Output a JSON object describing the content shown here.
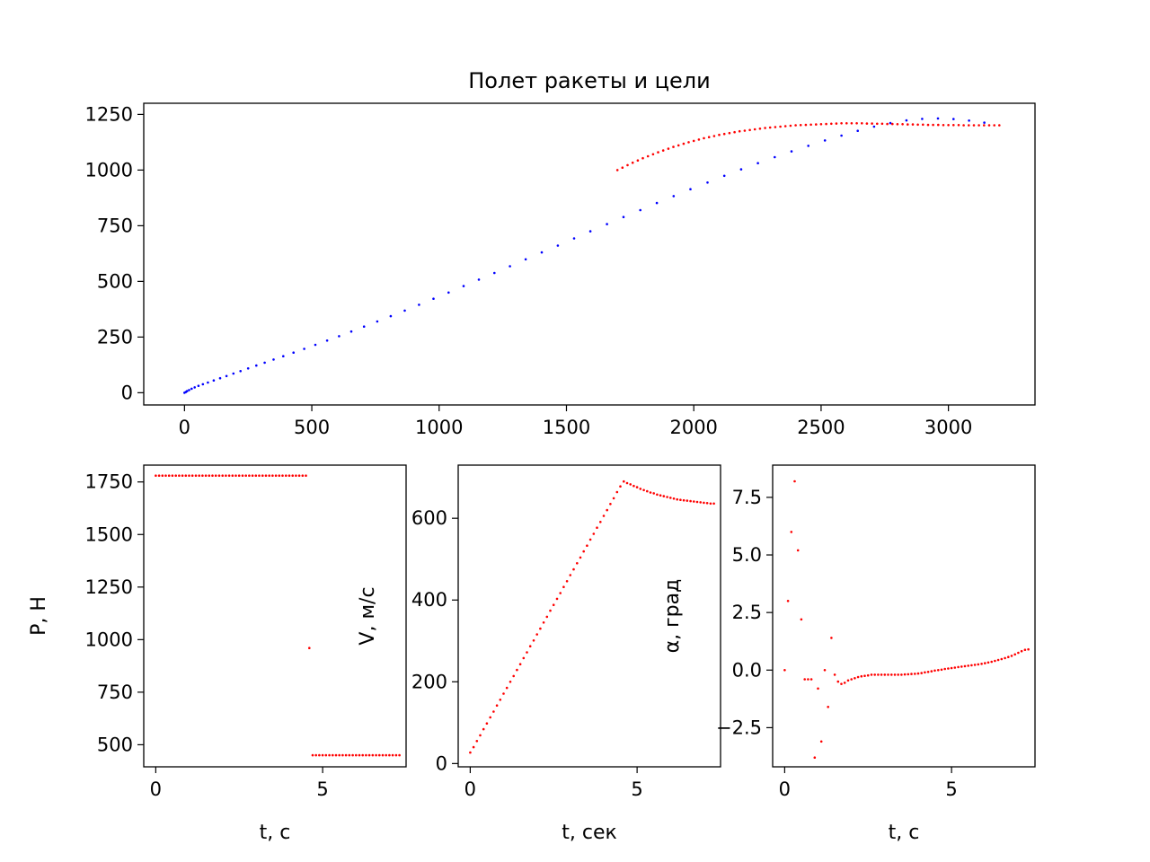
{
  "chart_data": [
    {
      "type": "scatter",
      "title": "Полет ракеты и цели",
      "xlabel": "",
      "ylabel": "",
      "xlim": [
        -160,
        3340
      ],
      "ylim": [
        -55,
        1300
      ],
      "xticks": [
        0,
        500,
        1000,
        1500,
        2000,
        2500,
        3000
      ],
      "yticks": [
        0,
        250,
        500,
        750,
        1000,
        1250
      ],
      "grid": false,
      "series": [
        {
          "color": "#0000ff",
          "x": [
            0,
            5,
            10,
            18,
            28,
            40,
            55,
            72,
            92,
            115,
            140,
            165,
            192,
            220,
            250,
            282,
            315,
            350,
            388,
            428,
            470,
            514,
            560,
            607,
            655,
            705,
            757,
            810,
            865,
            921,
            978,
            1037,
            1096,
            1156,
            1217,
            1278,
            1340,
            1403,
            1466,
            1530,
            1594,
            1659,
            1724,
            1790,
            1855,
            1921,
            1987,
            2054,
            2120,
            2186,
            2252,
            2318,
            2384,
            2450,
            2515,
            2580,
            2644,
            2708,
            2772,
            2835,
            2897,
            2959,
            3020,
            3081,
            3141
          ],
          "y": [
            0,
            3,
            7,
            12,
            18,
            24,
            31,
            38,
            46,
            55,
            65,
            75,
            86,
            97,
            109,
            122,
            135,
            149,
            164,
            180,
            197,
            215,
            234,
            254,
            275,
            297,
            320,
            344,
            369,
            395,
            422,
            450,
            479,
            508,
            538,
            568,
            599,
            630,
            661,
            693,
            725,
            757,
            789,
            820,
            852,
            883,
            914,
            944,
            974,
            1003,
            1031,
            1058,
            1084,
            1109,
            1133,
            1155,
            1176,
            1195,
            1211,
            1223,
            1230,
            1232,
            1229,
            1222,
            1213
          ]
        },
        {
          "color": "#ff0000",
          "x": [
            1700,
            1720,
            1740,
            1760,
            1780,
            1800,
            1820,
            1840,
            1860,
            1880,
            1900,
            1920,
            1940,
            1960,
            1980,
            2000,
            2020,
            2040,
            2060,
            2080,
            2100,
            2120,
            2140,
            2160,
            2180,
            2200,
            2220,
            2240,
            2260,
            2280,
            2300,
            2320,
            2340,
            2360,
            2380,
            2400,
            2420,
            2440,
            2460,
            2480,
            2500,
            2520,
            2540,
            2560,
            2580,
            2600,
            2620,
            2640,
            2660,
            2680,
            2700,
            2720,
            2740,
            2760,
            2780,
            2800,
            2820,
            2840,
            2860,
            2880,
            2900,
            2920,
            2940,
            2960,
            2980,
            3000,
            3020,
            3040,
            3060,
            3080,
            3100,
            3120,
            3140,
            3160,
            3180,
            3200
          ],
          "y": [
            1000,
            1011,
            1022,
            1033,
            1043,
            1053,
            1062,
            1071,
            1080,
            1088,
            1096,
            1104,
            1111,
            1118,
            1125,
            1131,
            1137,
            1143,
            1148,
            1153,
            1158,
            1162,
            1166,
            1170,
            1174,
            1177,
            1180,
            1183,
            1186,
            1189,
            1191,
            1193,
            1195,
            1197,
            1199,
            1201,
            1202,
            1203,
            1204,
            1205,
            1206,
            1207,
            1208,
            1209,
            1210,
            1210,
            1210,
            1210,
            1210,
            1209,
            1209,
            1208,
            1208,
            1207,
            1207,
            1206,
            1206,
            1205,
            1205,
            1204,
            1204,
            1203,
            1203,
            1203,
            1202,
            1202,
            1202,
            1202,
            1201,
            1201,
            1201,
            1201,
            1201,
            1201,
            1201,
            1201
          ]
        }
      ]
    },
    {
      "type": "scatter",
      "title": "",
      "xlabel": "t, с",
      "ylabel": "P, Н",
      "xlim": [
        -0.36,
        7.5
      ],
      "ylim": [
        395,
        1830
      ],
      "xticks": [
        0,
        5
      ],
      "yticks": [
        500,
        750,
        1000,
        1250,
        1500,
        1750
      ],
      "grid": false,
      "series": [
        {
          "color": "#ff0000",
          "x": [
            0,
            0.1,
            0.2,
            0.3,
            0.4,
            0.5,
            0.6,
            0.7,
            0.8,
            0.9,
            1.0,
            1.1,
            1.2,
            1.3,
            1.4,
            1.5,
            1.6,
            1.7,
            1.8,
            1.9,
            2.0,
            2.1,
            2.2,
            2.3,
            2.4,
            2.5,
            2.6,
            2.7,
            2.8,
            2.9,
            3.0,
            3.1,
            3.2,
            3.3,
            3.4,
            3.5,
            3.6,
            3.7,
            3.8,
            3.9,
            4.0,
            4.1,
            4.2,
            4.3,
            4.4,
            4.5,
            4.6,
            4.7,
            4.8,
            4.9,
            5.0,
            5.1,
            5.2,
            5.3,
            5.4,
            5.5,
            5.6,
            5.7,
            5.8,
            5.9,
            6.0,
            6.1,
            6.2,
            6.3,
            6.4,
            6.5,
            6.6,
            6.7,
            6.8,
            6.9,
            7.0,
            7.1,
            7.2,
            7.3
          ],
          "y": [
            1780,
            1780,
            1780,
            1780,
            1780,
            1780,
            1780,
            1780,
            1780,
            1780,
            1780,
            1780,
            1780,
            1780,
            1780,
            1780,
            1780,
            1780,
            1780,
            1780,
            1780,
            1780,
            1780,
            1780,
            1780,
            1780,
            1780,
            1780,
            1780,
            1780,
            1780,
            1780,
            1780,
            1780,
            1780,
            1780,
            1780,
            1780,
            1780,
            1780,
            1780,
            1780,
            1780,
            1780,
            1780,
            1780,
            960,
            450,
            450,
            450,
            450,
            450,
            450,
            450,
            450,
            450,
            450,
            450,
            450,
            450,
            450,
            450,
            450,
            450,
            450,
            450,
            450,
            450,
            450,
            450,
            450,
            450,
            450,
            450
          ]
        }
      ]
    },
    {
      "type": "scatter",
      "title": "",
      "xlabel": "t, сек",
      "ylabel": "V, м/с",
      "xlim": [
        -0.36,
        7.5
      ],
      "ylim": [
        -8,
        730
      ],
      "xticks": [
        0,
        5
      ],
      "yticks": [
        0,
        200,
        400,
        600
      ],
      "grid": false,
      "series": [
        {
          "color": "#ff0000",
          "x": [
            0,
            0.1,
            0.2,
            0.3,
            0.4,
            0.5,
            0.6,
            0.7,
            0.8,
            0.9,
            1.0,
            1.1,
            1.2,
            1.3,
            1.4,
            1.5,
            1.6,
            1.7,
            1.8,
            1.9,
            2.0,
            2.1,
            2.2,
            2.3,
            2.4,
            2.5,
            2.6,
            2.7,
            2.8,
            2.9,
            3.0,
            3.1,
            3.2,
            3.3,
            3.4,
            3.5,
            3.6,
            3.7,
            3.8,
            3.9,
            4.0,
            4.1,
            4.2,
            4.3,
            4.4,
            4.5,
            4.6,
            4.7,
            4.8,
            4.9,
            5.0,
            5.1,
            5.2,
            5.3,
            5.4,
            5.5,
            5.6,
            5.7,
            5.8,
            5.9,
            6.0,
            6.1,
            6.2,
            6.3,
            6.4,
            6.5,
            6.6,
            6.7,
            6.8,
            6.9,
            7.0,
            7.1,
            7.2,
            7.3
          ],
          "y": [
            27,
            40,
            55,
            69,
            84,
            98,
            113,
            127,
            142,
            156,
            171,
            185,
            200,
            214,
            229,
            243,
            258,
            272,
            287,
            301,
            316,
            330,
            345,
            359,
            374,
            388,
            403,
            417,
            432,
            446,
            461,
            475,
            490,
            504,
            519,
            533,
            548,
            562,
            577,
            591,
            606,
            620,
            635,
            649,
            664,
            678,
            690,
            686,
            683,
            679,
            676,
            672,
            669,
            666,
            663,
            661,
            658,
            656,
            654,
            652,
            650,
            648,
            646,
            645,
            644,
            643,
            642,
            641,
            640,
            639,
            638,
            637,
            636,
            636
          ]
        }
      ]
    },
    {
      "type": "scatter",
      "title": "",
      "xlabel": "t, с",
      "ylabel": "α, град",
      "xlim": [
        -0.36,
        7.5
      ],
      "ylim": [
        -4.2,
        8.9
      ],
      "xticks": [
        0,
        5
      ],
      "yticks": [
        -2.5,
        0.0,
        2.5,
        5.0,
        7.5
      ],
      "ytick_labels": [
        "−2.5",
        "0.0",
        "2.5",
        "5.0",
        "7.5"
      ],
      "grid": false,
      "series": [
        {
          "color": "#ff0000",
          "x": [
            0,
            0.1,
            0.2,
            0.3,
            0.4,
            0.5,
            0.6,
            0.7,
            0.8,
            0.9,
            1.0,
            1.1,
            1.2,
            1.3,
            1.4,
            1.5,
            1.6,
            1.7,
            1.8,
            1.9,
            2.0,
            2.1,
            2.2,
            2.3,
            2.4,
            2.5,
            2.6,
            2.7,
            2.8,
            2.9,
            3.0,
            3.1,
            3.2,
            3.3,
            3.4,
            3.5,
            3.6,
            3.7,
            3.8,
            3.9,
            4.0,
            4.1,
            4.2,
            4.3,
            4.4,
            4.5,
            4.6,
            4.7,
            4.8,
            4.9,
            5.0,
            5.1,
            5.2,
            5.3,
            5.4,
            5.5,
            5.6,
            5.7,
            5.8,
            5.9,
            6.0,
            6.1,
            6.2,
            6.3,
            6.4,
            6.5,
            6.6,
            6.7,
            6.8,
            6.9,
            7.0,
            7.1,
            7.2,
            7.3
          ],
          "y": [
            0,
            3.0,
            6.0,
            8.2,
            5.2,
            2.2,
            -0.4,
            -0.4,
            -0.4,
            -3.8,
            -0.8,
            -3.1,
            0,
            -1.6,
            1.4,
            -0.2,
            -0.5,
            -0.6,
            -0.55,
            -0.45,
            -0.4,
            -0.35,
            -0.3,
            -0.27,
            -0.25,
            -0.23,
            -0.2,
            -0.2,
            -0.2,
            -0.2,
            -0.2,
            -0.2,
            -0.2,
            -0.2,
            -0.2,
            -0.2,
            -0.19,
            -0.18,
            -0.17,
            -0.16,
            -0.15,
            -0.13,
            -0.1,
            -0.08,
            -0.05,
            -0.02,
            0.0,
            0.02,
            0.05,
            0.07,
            0.09,
            0.11,
            0.13,
            0.15,
            0.17,
            0.19,
            0.21,
            0.23,
            0.25,
            0.27,
            0.3,
            0.33,
            0.36,
            0.4,
            0.44,
            0.48,
            0.52,
            0.57,
            0.62,
            0.68,
            0.75,
            0.82,
            0.88,
            0.9
          ]
        }
      ]
    }
  ]
}
